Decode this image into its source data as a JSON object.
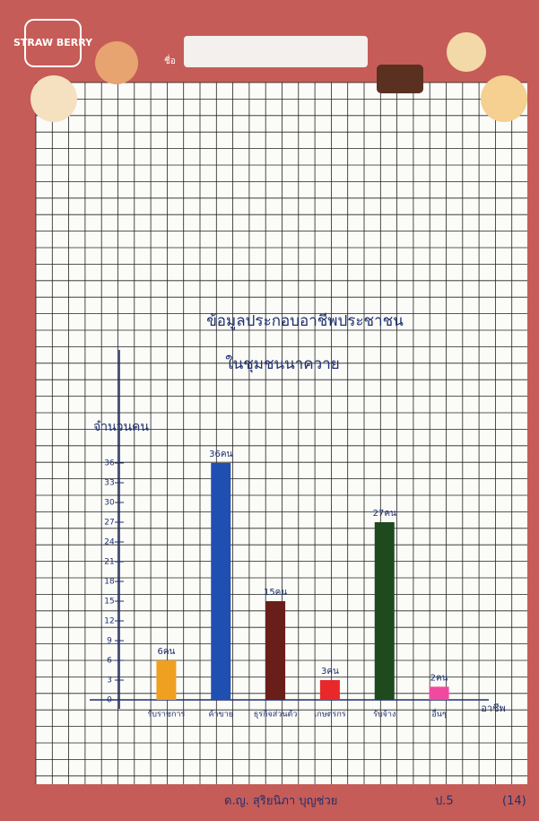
{
  "chart_data": {
    "type": "bar",
    "title": "ข้อมูลประกอบอาชีพประชาชน",
    "subtitle": "ในชุมชนนาควาย",
    "sticker": "STRAW BERRY",
    "name_label": "ชื่อ",
    "y_label": "จำนวนคน",
    "x_label": "อาชีพ",
    "categories": [
      "รับราชการ",
      "ค้าขาย",
      "ธุรกิจส่วนตัว",
      "เกษตรกร",
      "รับจ้าง",
      "อื่นๆ"
    ],
    "values": [
      6,
      36,
      15,
      3,
      27,
      2
    ],
    "value_labels": [
      "6คน",
      "36คน",
      "15คน",
      "3คน",
      "27คน",
      "2คน"
    ],
    "colors": [
      "#f0a020",
      "#1f4fb0",
      "#6a1e1a",
      "#e8282a",
      "#1e4a1e",
      "#f04aa0"
    ],
    "ylim": [
      0,
      36
    ],
    "yticks": [
      0,
      3,
      6,
      9,
      12,
      15,
      18,
      21,
      24,
      27,
      30,
      33,
      36
    ],
    "footer": [
      "ด.ญ. สุริยนิภา บุญช่วย",
      "ป.5",
      "(14)"
    ]
  }
}
